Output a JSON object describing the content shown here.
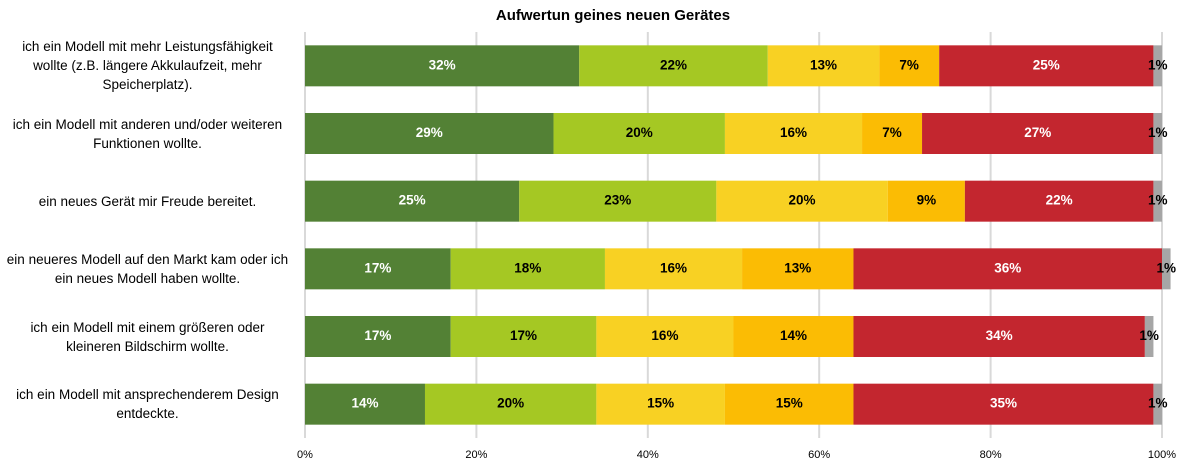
{
  "chart_data": {
    "type": "stacked_barh",
    "title": "Aufwertun geines neuen Gerätes",
    "categories": [
      "ich ein Modell mit mehr Leistungsfähigkeit wollte (z.B. längere Akkulaufzeit, mehr Speicherplatz).",
      "ich ein Modell mit anderen und/oder weiteren Funktionen wollte.",
      "ein neues Gerät mir Freude bereitet.",
      "ein neueres Modell auf den Markt kam oder ich ein neues Modell haben wollte.",
      "ich ein Modell mit einem größeren oder kleineren Bildschirm wollte.",
      "ich ein Modell mit ansprechenderem Design entdeckte."
    ],
    "series": [
      {
        "color": "#538135",
        "label_color": "#ffffff",
        "values": [
          32,
          29,
          25,
          17,
          17,
          14
        ],
        "value_labels": [
          "32%",
          "29%",
          "25%",
          "17%",
          "17%",
          "14%"
        ]
      },
      {
        "color": "#a5c823",
        "label_color": "#000000",
        "values": [
          22,
          20,
          23,
          18,
          17,
          20
        ],
        "value_labels": [
          "22%",
          "20%",
          "23%",
          "18%",
          "17%",
          "20%"
        ]
      },
      {
        "color": "#f8d123",
        "label_color": "#000000",
        "values": [
          13,
          16,
          20,
          16,
          16,
          15
        ],
        "value_labels": [
          "13%",
          "16%",
          "20%",
          "16%",
          "16%",
          "15%"
        ]
      },
      {
        "color": "#fbbc04",
        "label_color": "#000000",
        "values": [
          7,
          7,
          9,
          13,
          14,
          15
        ],
        "value_labels": [
          "7%",
          "7%",
          "9%",
          "13%",
          "14%",
          "15%"
        ]
      },
      {
        "color": "#c3262f",
        "label_color": "#ffffff",
        "values": [
          25,
          27,
          22,
          36,
          34,
          35
        ],
        "value_labels": [
          "25%",
          "27%",
          "22%",
          "36%",
          "34%",
          "35%"
        ]
      },
      {
        "color": "#a6a6a6",
        "label_color": "#000000",
        "values": [
          1,
          1,
          1,
          1,
          1,
          1
        ],
        "value_labels": [
          "1%",
          "1%",
          "1%",
          "1%",
          "1%",
          "1%"
        ]
      }
    ],
    "xlim": [
      0,
      100
    ],
    "xticks": [
      {
        "value": 0,
        "label": "0%"
      },
      {
        "value": 20,
        "label": "20%"
      },
      {
        "value": 40,
        "label": "40%"
      },
      {
        "value": 60,
        "label": "60%"
      },
      {
        "value": 80,
        "label": "80%"
      },
      {
        "value": 100,
        "label": "100%"
      }
    ],
    "grid": true
  }
}
